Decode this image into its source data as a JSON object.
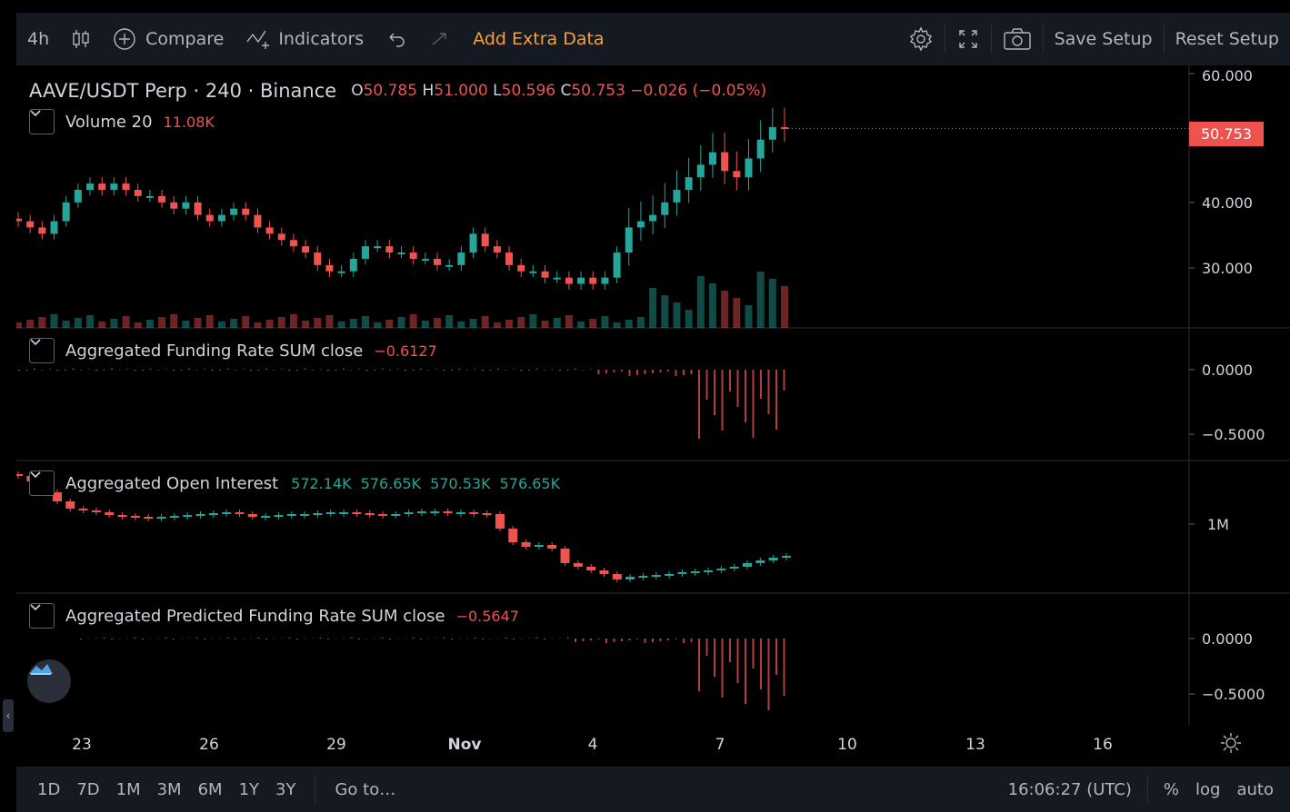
{
  "toolbar": {
    "interval": "4h",
    "compare_label": "Compare",
    "indicators_label": "Indicators",
    "add_extra_data_label": "Add Extra Data",
    "save_setup_label": "Save Setup",
    "reset_setup_label": "Reset Setup",
    "icons": [
      "candles-icon",
      "plus-circle-icon",
      "indicators-icon",
      "undo-icon",
      "redo-icon",
      "gear-icon",
      "fullscreen-icon",
      "camera-icon"
    ]
  },
  "main_pane": {
    "symbol": "AAVE/USDT Perp · 240 · Binance",
    "open_label": "O",
    "open": "50.785",
    "high_label": "H",
    "high": "51.000",
    "low_label": "L",
    "low": "50.596",
    "close_label": "C",
    "close": "50.753",
    "change": "−0.026 (−0.05%)",
    "volume_label": "Volume 20",
    "volume_value": "11.08K",
    "last_price": "50.753",
    "axis_ticks": [
      "60.000",
      "40.000",
      "30.000"
    ]
  },
  "funding_pane": {
    "label": "Aggregated Funding Rate SUM close",
    "value": "−0.6127",
    "axis_ticks": [
      "0.0000",
      "−0.5000"
    ]
  },
  "oi_pane": {
    "label": "Aggregated Open Interest",
    "values": [
      "572.14K",
      "576.65K",
      "570.53K",
      "576.65K"
    ],
    "axis_ticks": [
      "1M"
    ]
  },
  "predicted_pane": {
    "label": "Aggregated Predicted Funding Rate SUM close",
    "value": "−0.5647",
    "axis_ticks": [
      "0.0000",
      "−0.5000"
    ]
  },
  "time_axis": [
    "23",
    "26",
    "29",
    "Nov",
    "4",
    "7",
    "10",
    "13",
    "16"
  ],
  "bottombar": {
    "ranges": [
      "1D",
      "7D",
      "1M",
      "3M",
      "6M",
      "1Y",
      "3Y"
    ],
    "goto_label": "Go to…",
    "clock": "16:06:27 (UTC)",
    "percent_label": "%",
    "log_label": "log",
    "auto_label": "auto"
  },
  "colors": {
    "up": "#26a69a",
    "down": "#ef5350",
    "accent": "#f7a035",
    "background": "#000000",
    "toolbar": "#151922"
  },
  "chart_data": {
    "type": "candlestick",
    "title": "AAVE/USDT Perp · 240 · Binance",
    "price_close_approx": [
      36,
      35,
      34,
      36,
      39,
      41,
      42,
      41,
      42,
      41,
      40,
      40,
      39,
      38,
      39,
      37,
      36,
      37,
      38,
      37,
      35,
      34,
      33,
      32,
      31,
      29,
      28,
      28,
      30,
      32,
      32,
      31,
      31,
      30,
      30,
      29,
      29,
      31,
      34,
      32,
      31,
      29,
      28,
      28,
      27,
      27,
      26,
      27,
      26,
      27,
      31,
      35,
      36,
      37,
      39,
      41,
      43,
      45,
      47,
      44,
      43,
      46,
      49,
      51,
      50.753
    ],
    "ylim": [
      20,
      62
    ]
  }
}
